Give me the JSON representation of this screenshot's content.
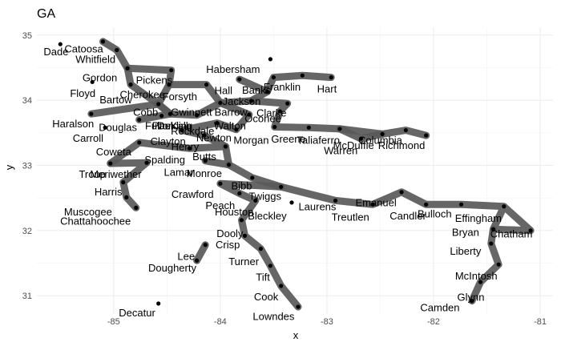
{
  "chart_data": {
    "type": "scatter",
    "title": "GA",
    "xlabel": "x",
    "ylabel": "y",
    "xlim": [
      -85.72,
      -80.88
    ],
    "ylim": [
      30.72,
      35.12
    ],
    "x_ticks": [
      -85,
      -84,
      -83,
      -82,
      -81
    ],
    "y_ticks": [
      31,
      32,
      33,
      34,
      35
    ],
    "x_tick_labels": [
      "-85",
      "-84",
      "-83",
      "-82",
      "-81"
    ],
    "y_tick_labels": [
      "31",
      "32",
      "33",
      "34",
      "35"
    ],
    "grid": true,
    "legend": "none",
    "points": [
      {
        "name": "Dade",
        "x": -85.5,
        "y": 34.86,
        "lx": -85.54,
        "ly": 34.74
      },
      {
        "name": "Catoosa",
        "x": -85.1,
        "y": 34.9,
        "lx": -85.28,
        "ly": 34.78
      },
      {
        "name": "Whitfield",
        "x": -84.97,
        "y": 34.77,
        "lx": -85.17,
        "ly": 34.62
      },
      {
        "name": "Gordon",
        "x": -84.87,
        "y": 34.49,
        "lx": -85.13,
        "ly": 34.34
      },
      {
        "name": "Floyd",
        "x": -85.2,
        "y": 34.28,
        "lx": -85.29,
        "ly": 34.1
      },
      {
        "name": "Bartow",
        "x": -84.84,
        "y": 34.24,
        "lx": -84.98,
        "ly": 34.0
      },
      {
        "name": "Pickens",
        "x": -84.46,
        "y": 34.46,
        "lx": -84.62,
        "ly": 34.3
      },
      {
        "name": "Cherokee",
        "x": -84.48,
        "y": 34.24,
        "lx": -84.73,
        "ly": 34.08
      },
      {
        "name": "Forsyth",
        "x": -84.13,
        "y": 34.24,
        "lx": -84.38,
        "ly": 34.05
      },
      {
        "name": "Cobb",
        "x": -84.58,
        "y": 33.94,
        "lx": -84.7,
        "ly": 33.81
      },
      {
        "name": "Gwinnett",
        "x": -84.0,
        "y": 33.96,
        "lx": -84.27,
        "ly": 33.81
      },
      {
        "name": "Haralson",
        "x": -85.21,
        "y": 33.79,
        "lx": -85.38,
        "ly": 33.63
      },
      {
        "name": "Douglas",
        "x": -84.76,
        "y": 33.7,
        "lx": -84.96,
        "ly": 33.58
      },
      {
        "name": "Paulding",
        "x": -84.55,
        "y": 33.76,
        "lx": -84.45,
        "ly": 33.6
      },
      {
        "name": "Fulton",
        "x": -84.47,
        "y": 33.79,
        "lx": -84.57,
        "ly": 33.6
      },
      {
        "name": "DeKalb",
        "x": -84.22,
        "y": 33.77,
        "lx": -84.43,
        "ly": 33.6
      },
      {
        "name": "Rockdale",
        "x": -84.03,
        "y": 33.65,
        "lx": -84.26,
        "ly": 33.52
      },
      {
        "name": "Carroll",
        "x": -85.08,
        "y": 33.58,
        "lx": -85.24,
        "ly": 33.41
      },
      {
        "name": "Clayton",
        "x": -84.36,
        "y": 33.54,
        "lx": -84.49,
        "ly": 33.36
      },
      {
        "name": "Henry",
        "x": -84.15,
        "y": 33.46,
        "lx": -84.33,
        "ly": 33.28
      },
      {
        "name": "Coweta",
        "x": -84.76,
        "y": 33.35,
        "lx": -85.0,
        "ly": 33.2
      },
      {
        "name": "Spalding",
        "x": -84.29,
        "y": 33.26,
        "lx": -84.52,
        "ly": 33.08
      },
      {
        "name": "Butts",
        "x": -83.95,
        "y": 33.29,
        "lx": -84.15,
        "ly": 33.13
      },
      {
        "name": "Lamar",
        "x": -84.14,
        "y": 33.07,
        "lx": -84.39,
        "ly": 32.89
      },
      {
        "name": "Monroe",
        "x": -83.92,
        "y": 33.01,
        "lx": -84.15,
        "ly": 32.87
      },
      {
        "name": "Troup",
        "x": -85.03,
        "y": 33.03,
        "lx": -85.2,
        "ly": 32.86
      },
      {
        "name": "Meriwether",
        "x": -84.69,
        "y": 33.04,
        "lx": -84.98,
        "ly": 32.86
      },
      {
        "name": "Harris",
        "x": -84.91,
        "y": 32.74,
        "lx": -85.05,
        "ly": 32.59
      },
      {
        "name": "Muscogee",
        "x": -84.88,
        "y": 32.51,
        "lx": -85.24,
        "ly": 32.28
      },
      {
        "name": "Chattahoochee",
        "x": -84.79,
        "y": 32.35,
        "lx": -85.17,
        "ly": 32.14
      },
      {
        "name": "Crawford",
        "x": -84.0,
        "y": 32.72,
        "lx": -84.26,
        "ly": 32.55
      },
      {
        "name": "Peach",
        "x": -83.82,
        "y": 32.57,
        "lx": -84.0,
        "ly": 32.38
      },
      {
        "name": "Houston",
        "x": -83.67,
        "y": 32.46,
        "lx": -83.87,
        "ly": 32.28
      },
      {
        "name": "Bibb",
        "x": -83.7,
        "y": 32.81,
        "lx": -83.8,
        "ly": 32.68
      },
      {
        "name": "Twiggs",
        "x": -83.43,
        "y": 32.67,
        "lx": -83.58,
        "ly": 32.52
      },
      {
        "name": "Bleckley",
        "x": -83.33,
        "y": 32.43,
        "lx": -83.56,
        "ly": 32.22
      },
      {
        "name": "Laurens",
        "x": -82.92,
        "y": 32.46,
        "lx": -83.09,
        "ly": 32.36
      },
      {
        "name": "Treutlen",
        "x": -82.57,
        "y": 32.4,
        "lx": -82.78,
        "ly": 32.2
      },
      {
        "name": "Emanuel",
        "x": -82.3,
        "y": 32.59,
        "lx": -82.54,
        "ly": 32.42
      },
      {
        "name": "Candler",
        "x": -82.07,
        "y": 32.4,
        "lx": -82.24,
        "ly": 32.22
      },
      {
        "name": "Bulloch",
        "x": -81.74,
        "y": 32.4,
        "lx": -81.99,
        "ly": 32.25
      },
      {
        "name": "Effingham",
        "x": -81.34,
        "y": 32.37,
        "lx": -81.58,
        "ly": 32.18
      },
      {
        "name": "Chatham",
        "x": -81.09,
        "y": 32.0,
        "lx": -81.27,
        "ly": 31.94
      },
      {
        "name": "Bryan",
        "x": -81.44,
        "y": 32.02,
        "lx": -81.7,
        "ly": 31.97
      },
      {
        "name": "Liberty",
        "x": -81.46,
        "y": 31.8,
        "lx": -81.7,
        "ly": 31.68
      },
      {
        "name": "McIntosh",
        "x": -81.39,
        "y": 31.48,
        "lx": -81.6,
        "ly": 31.3
      },
      {
        "name": "Glynn",
        "x": -81.56,
        "y": 31.21,
        "lx": -81.65,
        "ly": 30.97
      },
      {
        "name": "Camden",
        "x": -81.64,
        "y": 30.92,
        "lx": -81.94,
        "ly": 30.81
      },
      {
        "name": "Dooly",
        "x": -83.8,
        "y": 32.16,
        "lx": -83.91,
        "ly": 31.95
      },
      {
        "name": "Crisp",
        "x": -83.77,
        "y": 31.92,
        "lx": -83.93,
        "ly": 31.78
      },
      {
        "name": "Turner",
        "x": -83.62,
        "y": 31.72,
        "lx": -83.78,
        "ly": 31.52
      },
      {
        "name": "Tift",
        "x": -83.53,
        "y": 31.46,
        "lx": -83.6,
        "ly": 31.28
      },
      {
        "name": "Cook",
        "x": -83.43,
        "y": 31.15,
        "lx": -83.57,
        "ly": 30.98
      },
      {
        "name": "Lowndes",
        "x": -83.27,
        "y": 30.83,
        "lx": -83.5,
        "ly": 30.68
      },
      {
        "name": "Lee",
        "x": -84.14,
        "y": 31.78,
        "lx": -84.32,
        "ly": 31.6
      },
      {
        "name": "Dougherty",
        "x": -84.22,
        "y": 31.54,
        "lx": -84.45,
        "ly": 31.42
      },
      {
        "name": "Decatur",
        "x": -84.58,
        "y": 30.88,
        "lx": -84.78,
        "ly": 30.73
      },
      {
        "name": "Habersham",
        "x": -83.53,
        "y": 34.63,
        "lx": -83.88,
        "ly": 34.47
      },
      {
        "name": "Hall",
        "x": -83.82,
        "y": 34.32,
        "lx": -83.97,
        "ly": 34.14
      },
      {
        "name": "Banks",
        "x": -83.5,
        "y": 34.35,
        "lx": -83.66,
        "ly": 34.15
      },
      {
        "name": "Franklin",
        "x": -83.23,
        "y": 34.38,
        "lx": -83.42,
        "ly": 34.2
      },
      {
        "name": "Hart",
        "x": -82.96,
        "y": 34.35,
        "lx": -83.0,
        "ly": 34.17
      },
      {
        "name": "Jackson",
        "x": -83.56,
        "y": 34.13,
        "lx": -83.8,
        "ly": 33.98
      },
      {
        "name": "Barrow",
        "x": -83.71,
        "y": 33.99,
        "lx": -83.9,
        "ly": 33.81
      },
      {
        "name": "Clarke",
        "x": -83.37,
        "y": 33.95,
        "lx": -83.52,
        "ly": 33.8
      },
      {
        "name": "Oconee",
        "x": -83.44,
        "y": 33.83,
        "lx": -83.6,
        "ly": 33.71
      },
      {
        "name": "Walton",
        "x": -83.73,
        "y": 33.78,
        "lx": -83.91,
        "ly": 33.6
      },
      {
        "name": "Newton",
        "x": -83.85,
        "y": 33.55,
        "lx": -84.06,
        "ly": 33.42
      },
      {
        "name": "Morgan",
        "x": -83.49,
        "y": 33.59,
        "lx": -83.71,
        "ly": 33.38
      },
      {
        "name": "Greene",
        "x": -83.17,
        "y": 33.58,
        "lx": -83.36,
        "ly": 33.4
      },
      {
        "name": "Taliaferro",
        "x": -82.88,
        "y": 33.56,
        "lx": -83.08,
        "ly": 33.38
      },
      {
        "name": "Warren",
        "x": -82.68,
        "y": 33.41,
        "lx": -82.87,
        "ly": 33.22
      },
      {
        "name": "McDuffie",
        "x": -82.48,
        "y": 33.48,
        "lx": -82.75,
        "ly": 33.3
      },
      {
        "name": "Columbia",
        "x": -82.26,
        "y": 33.54,
        "lx": -82.5,
        "ly": 33.38
      },
      {
        "name": "Richmond",
        "x": -82.07,
        "y": 33.46,
        "lx": -82.3,
        "ly": 33.3
      }
    ],
    "routes": [
      [
        "Catoosa",
        "Whitfield",
        "Gordon",
        "Pickens",
        "Cherokee",
        "Cobb",
        "Haralson"
      ],
      [
        "Gordon",
        "Bartow",
        "Cobb",
        "Fulton",
        "Douglas"
      ],
      [
        "Cherokee",
        "Forsyth",
        "Gwinnett",
        "Barrow",
        "Jackson",
        "Hall"
      ],
      [
        "Cobb",
        "Fulton",
        "DeKalb",
        "Gwinnett",
        "Walton",
        "Newton",
        "Rockdale",
        "Clayton",
        "Henry",
        "Butts",
        "Spalding",
        "Coweta",
        "Troup"
      ],
      [
        "Jackson",
        "Banks",
        "Franklin",
        "Hart"
      ],
      [
        "Barrow",
        "Clarke",
        "Oconee",
        "Morgan",
        "Greene",
        "Taliaferro",
        "McDuffie",
        "Columbia",
        "Richmond"
      ],
      [
        "Taliaferro",
        "Warren",
        "McDuffie"
      ],
      [
        "Butts",
        "Monroe",
        "Lamar"
      ],
      [
        "Monroe",
        "Bibb",
        "Twiggs",
        "Laurens",
        "Treutlen",
        "Emanuel",
        "Candler",
        "Bulloch",
        "Effingham",
        "Chatham",
        "Bryan",
        "Effingham"
      ],
      [
        "Twiggs",
        "Crawford",
        "Peach",
        "Houston",
        "Dooly",
        "Crisp",
        "Turner",
        "Tift",
        "Cook",
        "Lowndes"
      ],
      [
        "Bryan",
        "Liberty",
        "McIntosh",
        "Glynn",
        "Camden"
      ],
      [
        "Troup",
        "Meriwether",
        "Harris",
        "Muscogee",
        "Chattahoochee"
      ],
      [
        "Lee",
        "Dougherty"
      ]
    ]
  }
}
